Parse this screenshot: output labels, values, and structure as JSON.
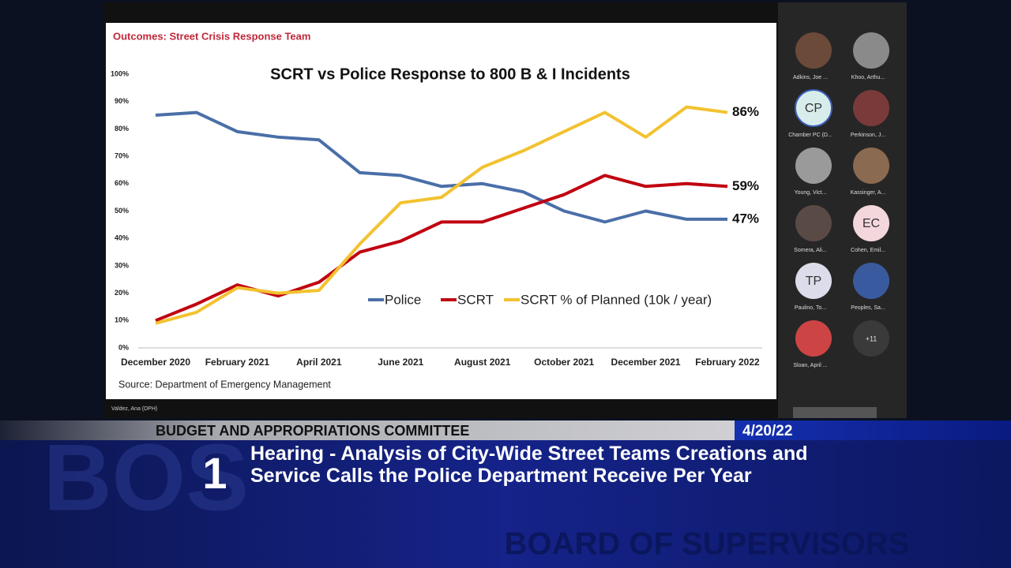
{
  "slide": {
    "header": "Outcomes: Street Crisis Response Team",
    "source": "Source: Department of Emergency Management",
    "presenter": "Valdez, Ana (DPH)"
  },
  "chart_data": {
    "type": "line",
    "title": "SCRT vs Police Response to 800 B & I Incidents",
    "categories": [
      "December 2020",
      null,
      "February 2021",
      null,
      "April 2021",
      null,
      "June 2021",
      null,
      "August 2021",
      null,
      "October 2021",
      null,
      "December 2021",
      null,
      "February 2022"
    ],
    "series": [
      {
        "name": "Police",
        "color": "#4a6fa8",
        "values": [
          85,
          86,
          79,
          77,
          76,
          64,
          63,
          59,
          60,
          57,
          50,
          46,
          50,
          47,
          47
        ],
        "end_label": "47%"
      },
      {
        "name": "SCRT",
        "color": "#c00010",
        "values": [
          10,
          16,
          23,
          19,
          24,
          35,
          39,
          46,
          46,
          51,
          56,
          63,
          59,
          60,
          59
        ],
        "end_label": "59%"
      },
      {
        "name": "SCRT % of Planned (10k / year)",
        "color": "#f2c230",
        "values": [
          9,
          13,
          22,
          20,
          21,
          38,
          53,
          55,
          66,
          72,
          79,
          86,
          77,
          88,
          86
        ],
        "end_label": "86%"
      }
    ],
    "ylim": [
      0,
      100
    ],
    "yticks": [
      {
        "value": 0,
        "label": "0%"
      },
      {
        "value": 10,
        "label": "10%"
      },
      {
        "value": 20,
        "label": "20%"
      },
      {
        "value": 30,
        "label": "30%"
      },
      {
        "value": 40,
        "label": "40%"
      },
      {
        "value": 50,
        "label": "50%"
      },
      {
        "value": 60,
        "label": "60%"
      },
      {
        "value": 70,
        "label": "70%"
      },
      {
        "value": 80,
        "label": "80%"
      },
      {
        "value": 90,
        "label": "90%"
      },
      {
        "value": 100,
        "label": "100%"
      }
    ],
    "grid": false,
    "legend": "inside"
  },
  "participants": [
    {
      "name": "Adkins, Joe ..."
    },
    {
      "name": "Khoo, Arthu..."
    },
    {
      "name": "Chamber PC (D...",
      "initials": "CP"
    },
    {
      "name": "Perkinson, J..."
    },
    {
      "name": "Young, Vict..."
    },
    {
      "name": "Kassinger, A..."
    },
    {
      "name": "Somera, Ali..."
    },
    {
      "name": "Cohen, Emil...",
      "initials": "EC"
    },
    {
      "name": "Paulino, To...",
      "initials": "TP"
    },
    {
      "name": "Peoples, Sa..."
    },
    {
      "name": "Sloan, April ..."
    }
  ],
  "overflow": "+11",
  "banner": {
    "committee": "BUDGET AND APPROPRIATIONS COMMITTEE",
    "date": "4/20/22",
    "item": "1",
    "title": "Hearing - Analysis of City-Wide Street Teams Creations and Service Calls the Police Department Receive Per Year",
    "watermark": "BOS",
    "watermark2": "BOARD OF SUPERVISORS"
  }
}
